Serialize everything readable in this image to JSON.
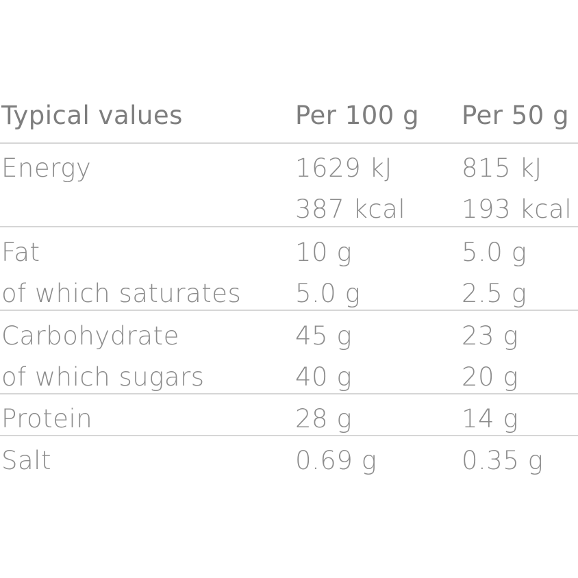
{
  "header": {
    "label": "Typical values",
    "per100": "Per 100 g",
    "per50": "Per 50 g"
  },
  "rows": [
    {
      "label": "Energy",
      "per100": "1629 kJ",
      "per50": "815 kJ"
    },
    {
      "label": "",
      "per100": "387 kcal",
      "per50": "193 kcal"
    },
    {
      "label": "Fat",
      "per100": "10 g",
      "per50": "5.0 g"
    },
    {
      "label": "of which saturates",
      "per100": "5.0 g",
      "per50": "2.5 g"
    },
    {
      "label": "Carbohydrate",
      "per100": "45 g",
      "per50": "23 g"
    },
    {
      "label": "of which sugars",
      "per100": "40 g",
      "per50": "20 g"
    },
    {
      "label": "Protein",
      "per100": "28 g",
      "per50": "14 g"
    },
    {
      "label": "Salt",
      "per100": "0.69 g",
      "per50": "0.35 g"
    }
  ]
}
